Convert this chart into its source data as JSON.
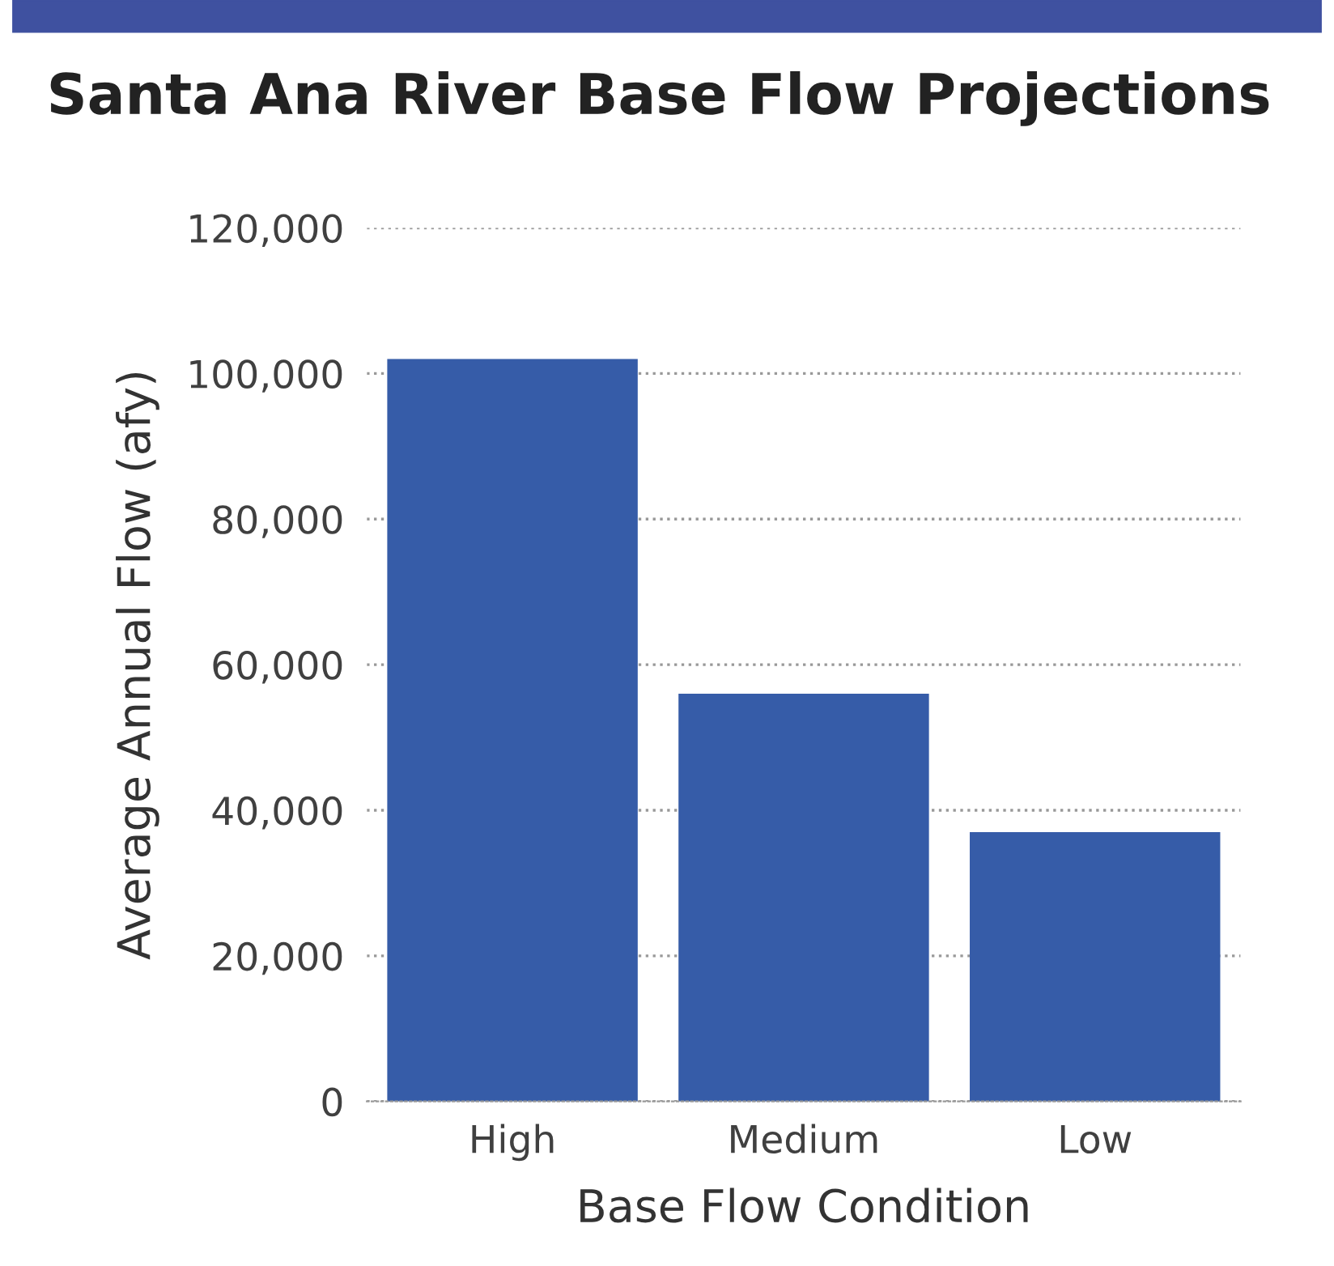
{
  "chart_data": {
    "type": "bar",
    "title": "Santa Ana River Base Flow Projections",
    "xlabel": "Base Flow Condition",
    "ylabel": "Average Annual Flow (afy)",
    "categories": [
      "High",
      "Medium",
      "Low"
    ],
    "values": [
      102000,
      56000,
      37000
    ],
    "color": "#365ca8",
    "ylim": [
      0,
      120000
    ],
    "yticks": [
      {
        "value": 0,
        "label": "0"
      },
      {
        "value": 20000,
        "label": "20,000"
      },
      {
        "value": 40000,
        "label": "40,000"
      },
      {
        "value": 60000,
        "label": "60,000"
      },
      {
        "value": 80000,
        "label": "80,000"
      },
      {
        "value": 100000,
        "label": "100,000"
      },
      {
        "value": 120000,
        "label": "120,000"
      }
    ],
    "grid": "y"
  }
}
